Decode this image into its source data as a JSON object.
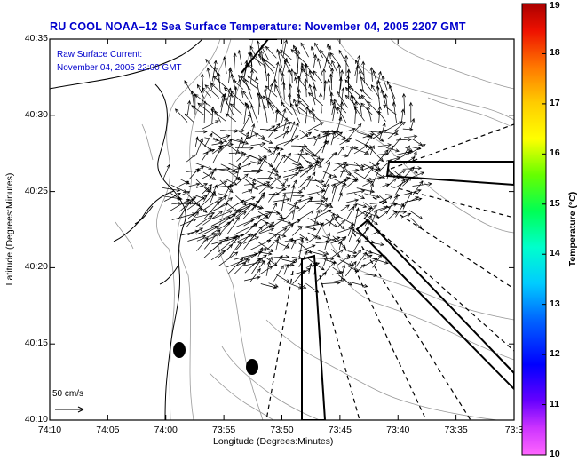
{
  "title": "RU COOL  NOAA–12  Sea Surface Temperature:  November 04, 2005 2207 GMT",
  "overlay": {
    "line1": "Raw Surface Current:",
    "line2": "November 04, 2005 22:00 GMT"
  },
  "axes": {
    "xlabel": "Longitude (Degrees:Minutes)",
    "ylabel": "Latitude (Degrees:Minutes)",
    "xticks": [
      "74:10",
      "74:05",
      "74:00",
      "73:55",
      "73:50",
      "73:45",
      "73:40",
      "73:35",
      "73:3"
    ],
    "yticks": [
      "40:35",
      "40:30",
      "40:25",
      "40:20",
      "40:15",
      "40:10"
    ]
  },
  "colorbar": {
    "label": "Temperature (°C)",
    "ticks": [
      "19",
      "18",
      "17",
      "16",
      "15",
      "14",
      "13",
      "12",
      "11",
      "10"
    ],
    "range": [
      10,
      19
    ]
  },
  "scale": {
    "label": "50 cm/s"
  },
  "colors": {
    "title": "#0000cc",
    "frame": "#000000",
    "bathymetry": "#999999"
  }
}
